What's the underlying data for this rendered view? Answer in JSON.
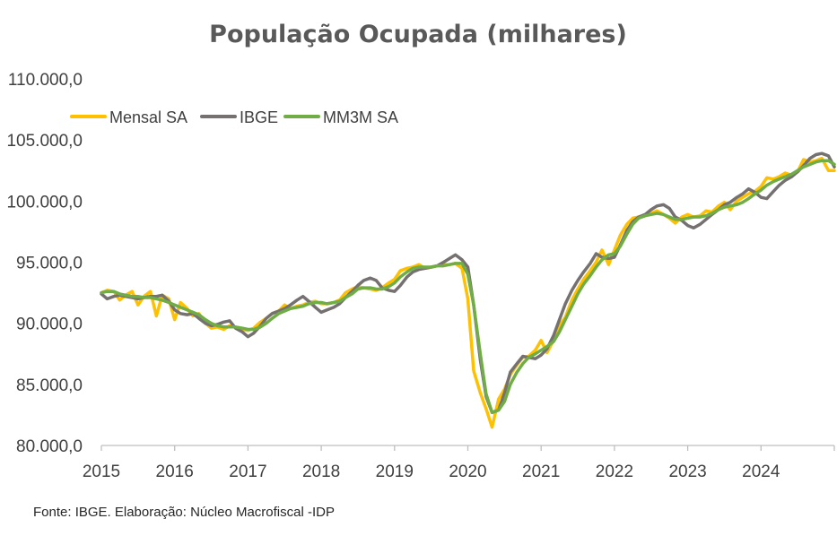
{
  "chart_data": {
    "type": "line",
    "title": "População Ocupada (milhares)",
    "xlabel": "",
    "ylabel": "",
    "ylim": [
      80000,
      110000
    ],
    "y_ticks": [
      "110.000,0",
      "105.000,0",
      "100.000,0",
      "95.000,0",
      "90.000,0",
      "85.000,0",
      "80.000,0"
    ],
    "y_tick_values": [
      110000,
      105000,
      100000,
      95000,
      90000,
      85000,
      80000
    ],
    "x_ticks": [
      "2015",
      "2016",
      "2017",
      "2018",
      "2019",
      "2020",
      "2021",
      "2022",
      "2023",
      "2024"
    ],
    "x_tick_values": [
      2015,
      2016,
      2017,
      2018,
      2019,
      2020,
      2021,
      2022,
      2023,
      2024
    ],
    "xlim": [
      2015,
      2025
    ],
    "grid": false,
    "legend": "top-left",
    "series": [
      {
        "name": "Mensal SA",
        "color": "#FFC000",
        "x": [
          2015.0,
          2015.08,
          2015.17,
          2015.25,
          2015.33,
          2015.42,
          2015.5,
          2015.58,
          2015.67,
          2015.75,
          2015.83,
          2015.92,
          2016.0,
          2016.08,
          2016.17,
          2016.25,
          2016.33,
          2016.42,
          2016.5,
          2016.58,
          2016.67,
          2016.75,
          2016.83,
          2016.92,
          2017.0,
          2017.08,
          2017.17,
          2017.25,
          2017.33,
          2017.42,
          2017.5,
          2017.58,
          2017.67,
          2017.75,
          2017.83,
          2017.92,
          2018.0,
          2018.08,
          2018.17,
          2018.25,
          2018.33,
          2018.42,
          2018.5,
          2018.58,
          2018.67,
          2018.75,
          2018.83,
          2018.92,
          2019.0,
          2019.08,
          2019.17,
          2019.25,
          2019.33,
          2019.42,
          2019.5,
          2019.58,
          2019.67,
          2019.75,
          2019.83,
          2019.92,
          2020.0,
          2020.08,
          2020.17,
          2020.25,
          2020.33,
          2020.42,
          2020.5,
          2020.58,
          2020.67,
          2020.75,
          2020.83,
          2020.92,
          2021.0,
          2021.08,
          2021.17,
          2021.25,
          2021.33,
          2021.42,
          2021.5,
          2021.58,
          2021.67,
          2021.75,
          2021.83,
          2021.92,
          2022.0,
          2022.08,
          2022.17,
          2022.25,
          2022.33,
          2022.42,
          2022.5,
          2022.58,
          2022.67,
          2022.75,
          2022.83,
          2022.92,
          2023.0,
          2023.08,
          2023.17,
          2023.25,
          2023.33,
          2023.42,
          2023.5,
          2023.58,
          2023.67,
          2023.75,
          2023.83,
          2023.92,
          2024.0,
          2024.08,
          2024.17,
          2024.25,
          2024.33,
          2024.42,
          2024.5,
          2024.58,
          2024.67,
          2024.75,
          2024.83,
          2024.92,
          2025.0
        ],
        "values": [
          92500,
          92700,
          92600,
          91900,
          92300,
          92600,
          91500,
          92200,
          92600,
          90600,
          92300,
          92000,
          90300,
          91700,
          91200,
          90600,
          90800,
          90000,
          89600,
          89700,
          89500,
          89800,
          89700,
          89500,
          89400,
          89600,
          90100,
          90400,
          90800,
          91000,
          91500,
          91200,
          91400,
          91500,
          91700,
          91800,
          91600,
          91600,
          91700,
          91900,
          92500,
          92800,
          93000,
          92900,
          92800,
          92700,
          92900,
          93300,
          93600,
          94300,
          94500,
          94600,
          94800,
          94500,
          94600,
          94700,
          94800,
          94800,
          94900,
          94500,
          92000,
          86100,
          84300,
          83000,
          81500,
          83800,
          84600,
          85800,
          86600,
          87200,
          87300,
          87800,
          88600,
          87600,
          88600,
          89800,
          90500,
          91900,
          92800,
          93600,
          94300,
          95000,
          96000,
          94800,
          96000,
          97200,
          98100,
          98600,
          98700,
          98800,
          99000,
          99200,
          98900,
          98600,
          98200,
          98700,
          98900,
          98700,
          98800,
          99200,
          99100,
          99600,
          99900,
          99300,
          100000,
          100300,
          100600,
          100800,
          101200,
          101900,
          101800,
          102000,
          102300,
          102100,
          102400,
          103400,
          103200,
          103300,
          103500,
          102500,
          102500
        ]
      },
      {
        "name": "IBGE",
        "color": "#767171",
        "x": [
          2015.0,
          2015.08,
          2015.17,
          2015.25,
          2015.33,
          2015.42,
          2015.5,
          2015.58,
          2015.67,
          2015.75,
          2015.83,
          2015.92,
          2016.0,
          2016.08,
          2016.17,
          2016.25,
          2016.33,
          2016.42,
          2016.5,
          2016.58,
          2016.67,
          2016.75,
          2016.83,
          2016.92,
          2017.0,
          2017.08,
          2017.17,
          2017.25,
          2017.33,
          2017.42,
          2017.5,
          2017.58,
          2017.67,
          2017.75,
          2017.83,
          2017.92,
          2018.0,
          2018.08,
          2018.17,
          2018.25,
          2018.33,
          2018.42,
          2018.5,
          2018.58,
          2018.67,
          2018.75,
          2018.83,
          2018.92,
          2019.0,
          2019.08,
          2019.17,
          2019.25,
          2019.33,
          2019.42,
          2019.5,
          2019.58,
          2019.67,
          2019.75,
          2019.83,
          2019.92,
          2020.0,
          2020.08,
          2020.17,
          2020.25,
          2020.33,
          2020.42,
          2020.5,
          2020.58,
          2020.67,
          2020.75,
          2020.83,
          2020.92,
          2021.0,
          2021.08,
          2021.17,
          2021.25,
          2021.33,
          2021.42,
          2021.5,
          2021.58,
          2021.67,
          2021.75,
          2021.83,
          2021.92,
          2022.0,
          2022.08,
          2022.17,
          2022.25,
          2022.33,
          2022.42,
          2022.5,
          2022.58,
          2022.67,
          2022.75,
          2022.83,
          2022.92,
          2023.0,
          2023.08,
          2023.17,
          2023.25,
          2023.33,
          2023.42,
          2023.5,
          2023.58,
          2023.67,
          2023.75,
          2023.83,
          2023.92,
          2024.0,
          2024.08,
          2024.17,
          2024.25,
          2024.33,
          2024.42,
          2024.5,
          2024.58,
          2024.67,
          2024.75,
          2024.83,
          2024.92,
          2025.0
        ],
        "values": [
          92400,
          92000,
          92200,
          92300,
          92200,
          92100,
          92000,
          92100,
          92200,
          92200,
          92300,
          91800,
          91100,
          90800,
          90700,
          90800,
          90400,
          90000,
          89800,
          89900,
          90100,
          90200,
          89600,
          89300,
          88900,
          89200,
          89800,
          90400,
          90800,
          91000,
          91200,
          91500,
          91900,
          92200,
          91800,
          91300,
          90900,
          91100,
          91300,
          91600,
          92100,
          92600,
          93100,
          93500,
          93700,
          93500,
          92900,
          92700,
          92600,
          93100,
          93800,
          94200,
          94400,
          94500,
          94600,
          94700,
          95000,
          95300,
          95600,
          95200,
          94600,
          91500,
          87000,
          84000,
          82700,
          82900,
          84300,
          86000,
          86700,
          87300,
          87200,
          87100,
          87400,
          87900,
          89000,
          90300,
          91600,
          92700,
          93500,
          94200,
          94900,
          95700,
          95400,
          95300,
          95400,
          96400,
          97600,
          98300,
          98700,
          98900,
          99300,
          99600,
          99700,
          99400,
          98700,
          98400,
          98000,
          97800,
          98100,
          98500,
          98900,
          99300,
          99700,
          99900,
          100300,
          100600,
          101000,
          100700,
          100300,
          100200,
          100800,
          101300,
          101700,
          102000,
          102400,
          102900,
          103500,
          103800,
          103900,
          103700,
          102800
        ]
      },
      {
        "name": "MM3M SA",
        "color": "#70AD47",
        "x": [
          2015.0,
          2015.08,
          2015.17,
          2015.25,
          2015.33,
          2015.42,
          2015.5,
          2015.58,
          2015.67,
          2015.75,
          2015.83,
          2015.92,
          2016.0,
          2016.08,
          2016.17,
          2016.25,
          2016.33,
          2016.42,
          2016.5,
          2016.58,
          2016.67,
          2016.75,
          2016.83,
          2016.92,
          2017.0,
          2017.08,
          2017.17,
          2017.25,
          2017.33,
          2017.42,
          2017.5,
          2017.58,
          2017.67,
          2017.75,
          2017.83,
          2017.92,
          2018.0,
          2018.08,
          2018.17,
          2018.25,
          2018.33,
          2018.42,
          2018.5,
          2018.58,
          2018.67,
          2018.75,
          2018.83,
          2018.92,
          2019.0,
          2019.08,
          2019.17,
          2019.25,
          2019.33,
          2019.42,
          2019.5,
          2019.58,
          2019.67,
          2019.75,
          2019.83,
          2019.92,
          2020.0,
          2020.08,
          2020.17,
          2020.25,
          2020.33,
          2020.42,
          2020.5,
          2020.58,
          2020.67,
          2020.75,
          2020.83,
          2020.92,
          2021.0,
          2021.08,
          2021.17,
          2021.25,
          2021.33,
          2021.42,
          2021.5,
          2021.58,
          2021.67,
          2021.75,
          2021.83,
          2021.92,
          2022.0,
          2022.08,
          2022.17,
          2022.25,
          2022.33,
          2022.42,
          2022.5,
          2022.58,
          2022.67,
          2022.75,
          2022.83,
          2022.92,
          2023.0,
          2023.08,
          2023.17,
          2023.25,
          2023.33,
          2023.42,
          2023.5,
          2023.58,
          2023.67,
          2023.75,
          2023.83,
          2023.92,
          2024.0,
          2024.08,
          2024.17,
          2024.25,
          2024.33,
          2024.42,
          2024.5,
          2024.58,
          2024.67,
          2024.75,
          2024.83,
          2024.92,
          2025.0
        ],
        "values": [
          92500,
          92600,
          92600,
          92400,
          92300,
          92200,
          92200,
          92100,
          92100,
          92000,
          91900,
          91700,
          91500,
          91300,
          91100,
          90900,
          90700,
          90300,
          90000,
          89800,
          89700,
          89700,
          89700,
          89600,
          89500,
          89500,
          89700,
          90000,
          90400,
          90800,
          91000,
          91200,
          91300,
          91400,
          91600,
          91700,
          91700,
          91600,
          91700,
          91800,
          92100,
          92400,
          92800,
          92900,
          92900,
          92800,
          92800,
          93000,
          93300,
          93800,
          94200,
          94500,
          94600,
          94600,
          94600,
          94700,
          94700,
          94800,
          94900,
          94900,
          94000,
          91500,
          87500,
          84200,
          82700,
          82900,
          83600,
          85000,
          86000,
          86700,
          87200,
          87500,
          87800,
          88100,
          88500,
          89300,
          90300,
          91400,
          92400,
          93200,
          93900,
          94600,
          95200,
          95600,
          95700,
          96300,
          97300,
          98100,
          98600,
          98800,
          98900,
          99000,
          98900,
          98700,
          98500,
          98500,
          98600,
          98700,
          98700,
          98800,
          99000,
          99300,
          99500,
          99600,
          99700,
          99900,
          100200,
          100600,
          100900,
          101300,
          101600,
          101800,
          102000,
          102200,
          102500,
          102800,
          103000,
          103200,
          103300,
          103300,
          103000
        ]
      }
    ]
  },
  "footer": {
    "source": "Fonte: IBGE. Elaboração: Núcleo Macrofiscal -IDP"
  }
}
